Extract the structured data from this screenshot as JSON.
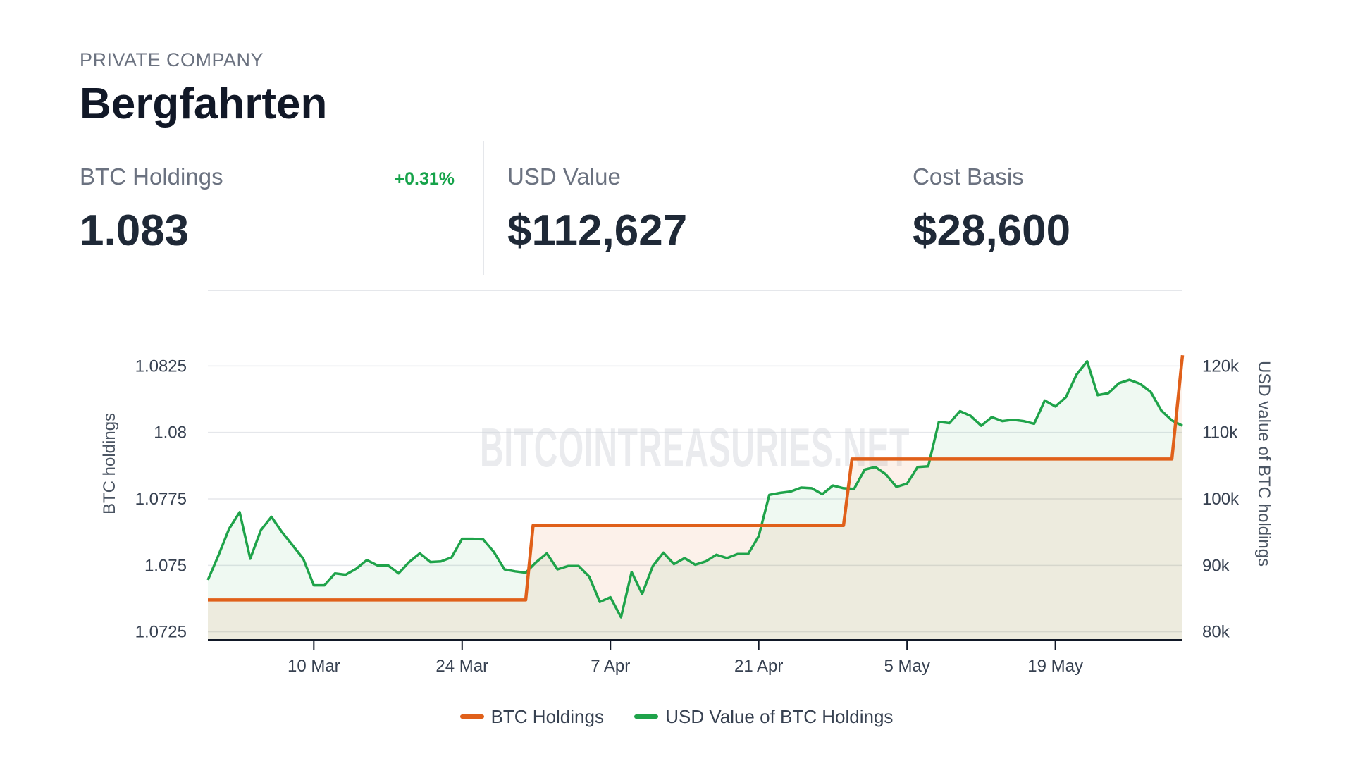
{
  "header": {
    "company_type": "PRIVATE COMPANY",
    "company_name": "Bergfahrten"
  },
  "stats": [
    {
      "label": "BTC Holdings",
      "value": "1.083",
      "change": "+0.31%"
    },
    {
      "label": "USD Value",
      "value": "$112,627"
    },
    {
      "label": "Cost Basis",
      "value": "$28,600"
    }
  ],
  "colors": {
    "btc_line": "#e0601a",
    "usd_line": "#1fa34a",
    "change_positive": "#16a34a"
  },
  "chart_data": {
    "type": "line",
    "watermark": "BITCOINTREASURIES.NET",
    "xlabel": "",
    "ylabel_left": "BTC holdings",
    "ylabel_right": "USD value of BTC holdings",
    "x_ticks": [
      "10 Mar",
      "24 Mar",
      "7 Apr",
      "21 Apr",
      "5 May",
      "19 May"
    ],
    "x_tick_days": [
      8,
      22,
      36,
      50,
      64,
      78
    ],
    "x_range_days": [
      -2,
      90
    ],
    "y_left_ticks": [
      "1.0725",
      "1.075",
      "1.0775",
      "1.08",
      "1.0825"
    ],
    "y_left_values": [
      1.0725,
      1.075,
      1.0775,
      1.08,
      1.0825
    ],
    "y_left_range": [
      1.0722,
      1.085
    ],
    "y_right_ticks": [
      "80k",
      "90k",
      "100k",
      "110k",
      "120k"
    ],
    "y_right_values": [
      80000,
      90000,
      100000,
      110000,
      120000
    ],
    "y_right_range": [
      78800,
      130000
    ],
    "legend_position": "bottom",
    "series": [
      {
        "name": "BTC Holdings",
        "axis": "left",
        "step": true,
        "points": [
          [
            -2,
            1.0737
          ],
          [
            28,
            1.0737
          ],
          [
            28.7,
            1.0765
          ],
          [
            58,
            1.0765
          ],
          [
            58.8,
            1.079
          ],
          [
            89,
            1.079
          ],
          [
            90,
            1.0829
          ]
        ]
      },
      {
        "name": "USD Value of BTC Holdings",
        "axis": "right",
        "step": false,
        "points": [
          [
            -2,
            87800
          ],
          [
            -1,
            91500
          ],
          [
            0,
            95500
          ],
          [
            1,
            98000
          ],
          [
            2,
            91000
          ],
          [
            3,
            95300
          ],
          [
            4,
            97300
          ],
          [
            5,
            95000
          ],
          [
            6,
            93000
          ],
          [
            7,
            91000
          ],
          [
            8,
            87000
          ],
          [
            9,
            87000
          ],
          [
            10,
            88800
          ],
          [
            11,
            88600
          ],
          [
            12,
            89500
          ],
          [
            13,
            90800
          ],
          [
            14,
            90000
          ],
          [
            15,
            90000
          ],
          [
            16,
            88800
          ],
          [
            17,
            90500
          ],
          [
            18,
            91800
          ],
          [
            19,
            90500
          ],
          [
            20,
            90600
          ],
          [
            21,
            91200
          ],
          [
            22,
            94000
          ],
          [
            23,
            94000
          ],
          [
            24,
            93900
          ],
          [
            25,
            92000
          ],
          [
            26,
            89400
          ],
          [
            27,
            89100
          ],
          [
            28,
            88900
          ],
          [
            29,
            90500
          ],
          [
            30,
            91800
          ],
          [
            31,
            89400
          ],
          [
            32,
            89900
          ],
          [
            33,
            89900
          ],
          [
            34,
            88300
          ],
          [
            35,
            84500
          ],
          [
            36,
            85200
          ],
          [
            37,
            82200
          ],
          [
            38,
            89000
          ],
          [
            39,
            85700
          ],
          [
            40,
            89900
          ],
          [
            41,
            91900
          ],
          [
            42,
            90200
          ],
          [
            43,
            91100
          ],
          [
            44,
            90100
          ],
          [
            45,
            90600
          ],
          [
            46,
            91600
          ],
          [
            47,
            91100
          ],
          [
            48,
            91700
          ],
          [
            49,
            91700
          ],
          [
            50,
            94400
          ],
          [
            51,
            100600
          ],
          [
            52,
            100900
          ],
          [
            53,
            101100
          ],
          [
            54,
            101700
          ],
          [
            55,
            101600
          ],
          [
            56,
            100700
          ],
          [
            57,
            102000
          ],
          [
            58,
            101600
          ],
          [
            59,
            101500
          ],
          [
            60,
            104400
          ],
          [
            61,
            104800
          ],
          [
            62,
            103700
          ],
          [
            63,
            101800
          ],
          [
            64,
            102300
          ],
          [
            65,
            104800
          ],
          [
            66,
            104900
          ],
          [
            67,
            111600
          ],
          [
            68,
            111400
          ],
          [
            69,
            113200
          ],
          [
            70,
            112500
          ],
          [
            71,
            111000
          ],
          [
            72,
            112300
          ],
          [
            73,
            111700
          ],
          [
            74,
            111900
          ],
          [
            75,
            111700
          ],
          [
            76,
            111300
          ],
          [
            77,
            114800
          ],
          [
            78,
            113900
          ],
          [
            79,
            115300
          ],
          [
            80,
            118700
          ],
          [
            81,
            120700
          ],
          [
            82,
            115600
          ],
          [
            83,
            115900
          ],
          [
            84,
            117400
          ],
          [
            85,
            117900
          ],
          [
            86,
            117300
          ],
          [
            87,
            116100
          ],
          [
            88,
            113300
          ],
          [
            89,
            111800
          ],
          [
            90,
            111000
          ]
        ]
      }
    ]
  }
}
